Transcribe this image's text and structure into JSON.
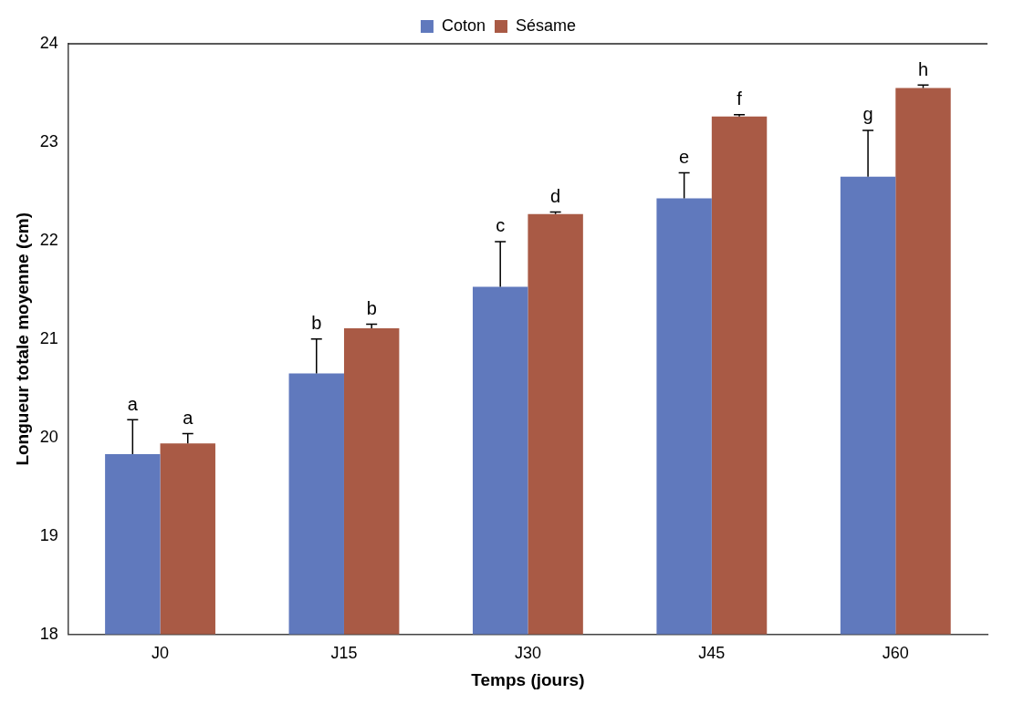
{
  "chart_data": {
    "type": "bar",
    "xlabel": "Temps (jours)",
    "ylabel": "Longueur totale moyenne (cm)",
    "categories": [
      "J0",
      "J15",
      "J30",
      "J45",
      "J60"
    ],
    "series": [
      {
        "name": "Coton",
        "color": "#6079bd",
        "values": [
          19.83,
          20.65,
          21.53,
          22.43,
          22.65
        ],
        "errors": [
          [
            19.83,
            20.18
          ],
          [
            20.65,
            21.0
          ],
          [
            21.53,
            21.99
          ],
          [
            22.43,
            22.69
          ],
          [
            22.65,
            23.12
          ]
        ],
        "value_labels": [
          "a",
          "b",
          "c",
          "e",
          "g"
        ]
      },
      {
        "name": "Sésame",
        "color": "#a95a45",
        "values": [
          19.94,
          21.11,
          22.27,
          23.26,
          23.55
        ],
        "errors": [
          [
            19.94,
            20.04
          ],
          [
            21.11,
            21.15
          ],
          [
            22.27,
            22.29
          ],
          [
            23.26,
            23.28
          ],
          [
            23.55,
            23.58
          ]
        ],
        "value_labels": [
          "a",
          "b",
          "d",
          "f",
          "h"
        ]
      }
    ],
    "ylim": [
      18,
      24
    ],
    "yticks": [
      18,
      19,
      20,
      21,
      22,
      23,
      24
    ],
    "legend": "top"
  }
}
